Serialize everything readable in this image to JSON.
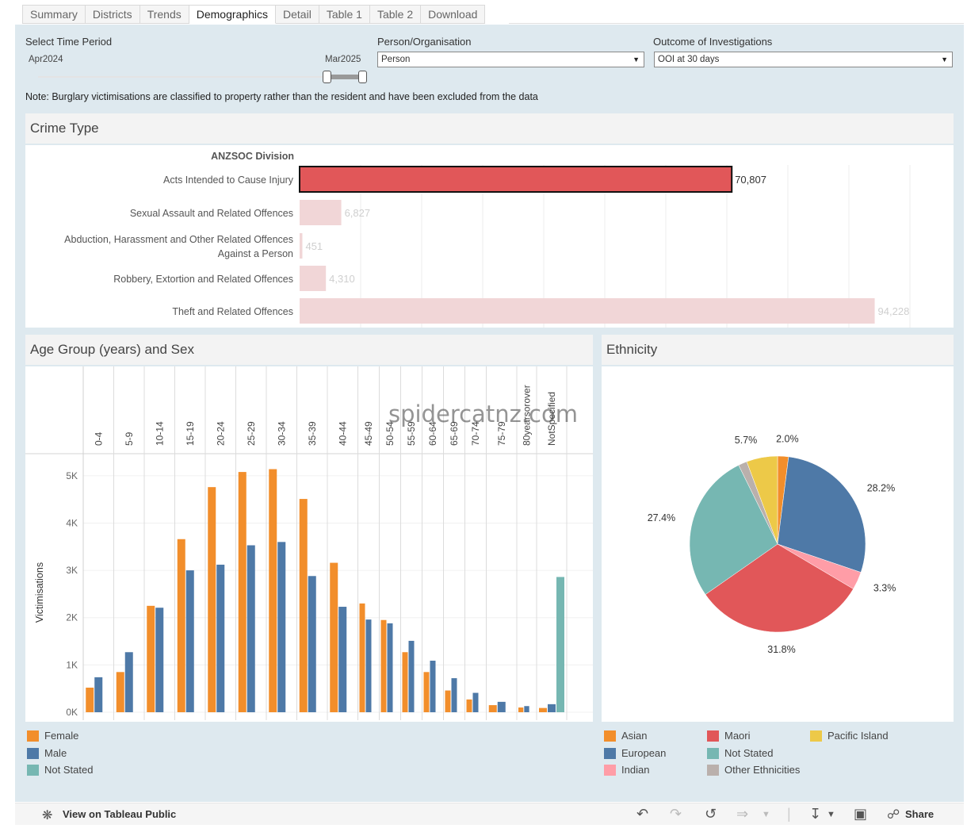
{
  "tabs": [
    "Summary",
    "Districts",
    "Trends",
    "Demographics",
    "Detail",
    "Table 1",
    "Table 2",
    "Download"
  ],
  "active_tab": "Demographics",
  "filters": {
    "time_period_label": "Select Time Period",
    "time_start": "Apr2024",
    "time_end": "Mar2025",
    "person_org_label": "Person/Organisation",
    "person_org_value": "Person",
    "outcome_label": "Outcome of Investigations",
    "outcome_value": "OOI at 30 days"
  },
  "note": "Note: Burglary victimisations are classified to property rather than the resident and have been excluded from the data",
  "crime_type": {
    "header": "Crime Type",
    "column_header": "ANZSOC Division",
    "chart_data": {
      "type": "bar",
      "orientation": "horizontal",
      "categories": [
        "Acts Intended to Cause Injury",
        "Sexual Assault and Related Offences",
        "Abduction, Harassment and Other Related Offences Against a Person",
        "Robbery, Extortion and Related Offences",
        "Theft and Related Offences"
      ],
      "category_lines": [
        [
          "Acts Intended to Cause Injury"
        ],
        [
          "Sexual Assault and Related Offences"
        ],
        [
          "Abduction, Harassment and Other Related Offences",
          "Against a Person"
        ],
        [
          "Robbery, Extortion and Related Offences"
        ],
        [
          "Theft and Related Offences"
        ]
      ],
      "values": [
        70807,
        6827,
        451,
        4310,
        94228
      ],
      "value_labels": [
        "70,807",
        "6,827",
        "451",
        "4,310",
        "94,228"
      ],
      "selected_index": 0,
      "colors": {
        "selected": "#e15759",
        "unselected": "#f1d6d7",
        "label_dim": "#cfcfcf"
      }
    }
  },
  "age_sex": {
    "header": "Age Group (years) and Sex",
    "chart_data": {
      "type": "bar",
      "categories": [
        "0-4",
        "5-9",
        "10-14",
        "15-19",
        "20-24",
        "25-29",
        "30-34",
        "35-39",
        "40-44",
        "45-49",
        "50-54",
        "55-59",
        "60-64",
        "65-69",
        "70-74",
        "75-79",
        "80yearsorover",
        "NotSpecified"
      ],
      "series": [
        {
          "name": "Female",
          "color": "#f28e2b",
          "values": [
            520,
            850,
            2250,
            3660,
            4760,
            5080,
            5140,
            4510,
            3160,
            2300,
            1950,
            1270,
            850,
            460,
            270,
            150,
            100,
            90
          ]
        },
        {
          "name": "Male",
          "color": "#4e79a7",
          "values": [
            740,
            1270,
            2210,
            3000,
            3120,
            3530,
            3600,
            2880,
            2230,
            1960,
            1880,
            1510,
            1090,
            720,
            410,
            220,
            130,
            170
          ]
        },
        {
          "name": "Not Stated",
          "color": "#76b7b2",
          "values": [
            0,
            0,
            0,
            0,
            0,
            0,
            0,
            0,
            0,
            0,
            0,
            0,
            0,
            0,
            0,
            0,
            0,
            2860
          ]
        }
      ],
      "ylabel": "Victimisations",
      "ylim": [
        0,
        5400
      ],
      "y_ticks": [
        0,
        1000,
        2000,
        3000,
        4000,
        5000
      ],
      "y_tick_labels": [
        "0K",
        "1K",
        "2K",
        "3K",
        "4K",
        "5K"
      ]
    }
  },
  "ethnicity": {
    "header": "Ethnicity",
    "chart_data": {
      "type": "pie",
      "slices": [
        {
          "name": "Asian",
          "value": 2.0,
          "label": "2.0%",
          "color": "#f28e2b"
        },
        {
          "name": "European",
          "value": 28.2,
          "label": "28.2%",
          "color": "#4e79a7"
        },
        {
          "name": "Indian",
          "value": 3.3,
          "label": "3.3%",
          "color": "#ff9da7"
        },
        {
          "name": "Maori",
          "value": 31.8,
          "label": "31.8%",
          "color": "#e15759"
        },
        {
          "name": "Not Stated",
          "value": 27.4,
          "label": "27.4%",
          "color": "#76b7b2"
        },
        {
          "name": "Other Ethnicities",
          "value": 1.6,
          "label": "",
          "color": "#bab0ac"
        },
        {
          "name": "Pacific Island",
          "value": 5.7,
          "label": "5.7%",
          "color": "#edc948"
        }
      ]
    }
  },
  "legends": {
    "sex": [
      {
        "label": "Female",
        "color": "#f28e2b"
      },
      {
        "label": "Male",
        "color": "#4e79a7"
      },
      {
        "label": "Not Stated",
        "color": "#76b7b2"
      }
    ],
    "ethnicity": [
      {
        "label": "Asian",
        "color": "#f28e2b"
      },
      {
        "label": "European",
        "color": "#4e79a7"
      },
      {
        "label": "Indian",
        "color": "#ff9da7"
      },
      {
        "label": "Maori",
        "color": "#e15759"
      },
      {
        "label": "Not Stated",
        "color": "#76b7b2"
      },
      {
        "label": "Other Ethnicities",
        "color": "#bab0ac"
      },
      {
        "label": "Pacific Island",
        "color": "#edc948"
      }
    ]
  },
  "watermark": "spidercatnz.com",
  "footer": {
    "view_label": "View on Tableau Public",
    "share_label": "Share"
  }
}
